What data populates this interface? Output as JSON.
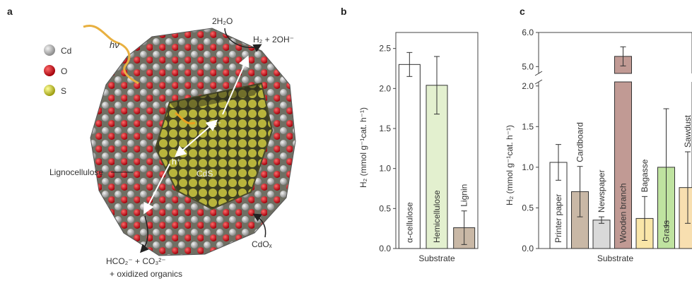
{
  "panels": {
    "a": "a",
    "b": "b",
    "c": "c"
  },
  "panel_a": {
    "legend": [
      {
        "label": "Cd",
        "color": "#b5b5b5"
      },
      {
        "label": "O",
        "color": "#d0111b"
      },
      {
        "label": "S",
        "color": "#d8d83a"
      }
    ],
    "light": "hν",
    "water": "2H₂O",
    "products_h2": "H₂ + 2OH⁻",
    "electron": "e⁻",
    "hole": "h⁺",
    "core": "CdS",
    "lignocellulose": "Lignocellulose",
    "shell": "CdOₓ",
    "oxidation_products": "HCO₂⁻ + CO₃²⁻",
    "oxidized_organics": "+ oxidized organics"
  },
  "chart_data": [
    {
      "type": "bar",
      "panel": "b",
      "categories": [
        "α-cellulose",
        "Hemicellulose",
        "Lignin"
      ],
      "values": [
        2.3,
        2.04,
        0.26
      ],
      "errors": [
        0.15,
        0.36,
        0.21
      ],
      "colors": [
        "#ffffff",
        "#e3f0cf",
        "#c9b8a6"
      ],
      "xlabel": "Substrate",
      "ylabel": "H₂ (mmol g⁻¹cat. h⁻¹)",
      "ylim": [
        0,
        2.7
      ],
      "yticks": [
        "0.0",
        "0.5",
        "1.0",
        "1.5",
        "2.0",
        "2.5"
      ]
    },
    {
      "type": "bar",
      "panel": "c",
      "categories": [
        "Printer paper",
        "Cardboard",
        "Newspaper",
        "Wooden branch",
        "Bagasse",
        "Grass",
        "Sawdust"
      ],
      "values": [
        1.06,
        0.7,
        0.35,
        5.3,
        0.37,
        1.0,
        0.75
      ],
      "errors": [
        0.22,
        0.31,
        0.04,
        0.28,
        0.27,
        0.72,
        0.44
      ],
      "colors": [
        "#ffffff",
        "#c9b8a6",
        "#d9d9d9",
        "#c19a94",
        "#f9e6a8",
        "#bfe3a0",
        "#f8dfb0"
      ],
      "xlabel": "Substrate",
      "ylabel": "H₂ (mmol g⁻¹cat. h⁻¹)",
      "broken_axis": true,
      "ylim_lower": [
        0,
        2.05
      ],
      "ylim_upper": [
        4.8,
        6.0
      ],
      "yticks_lower": [
        "0.0",
        "0.5",
        "1.0",
        "1.5",
        "2.0"
      ],
      "yticks_upper": [
        "5.0",
        "6.0"
      ]
    }
  ]
}
